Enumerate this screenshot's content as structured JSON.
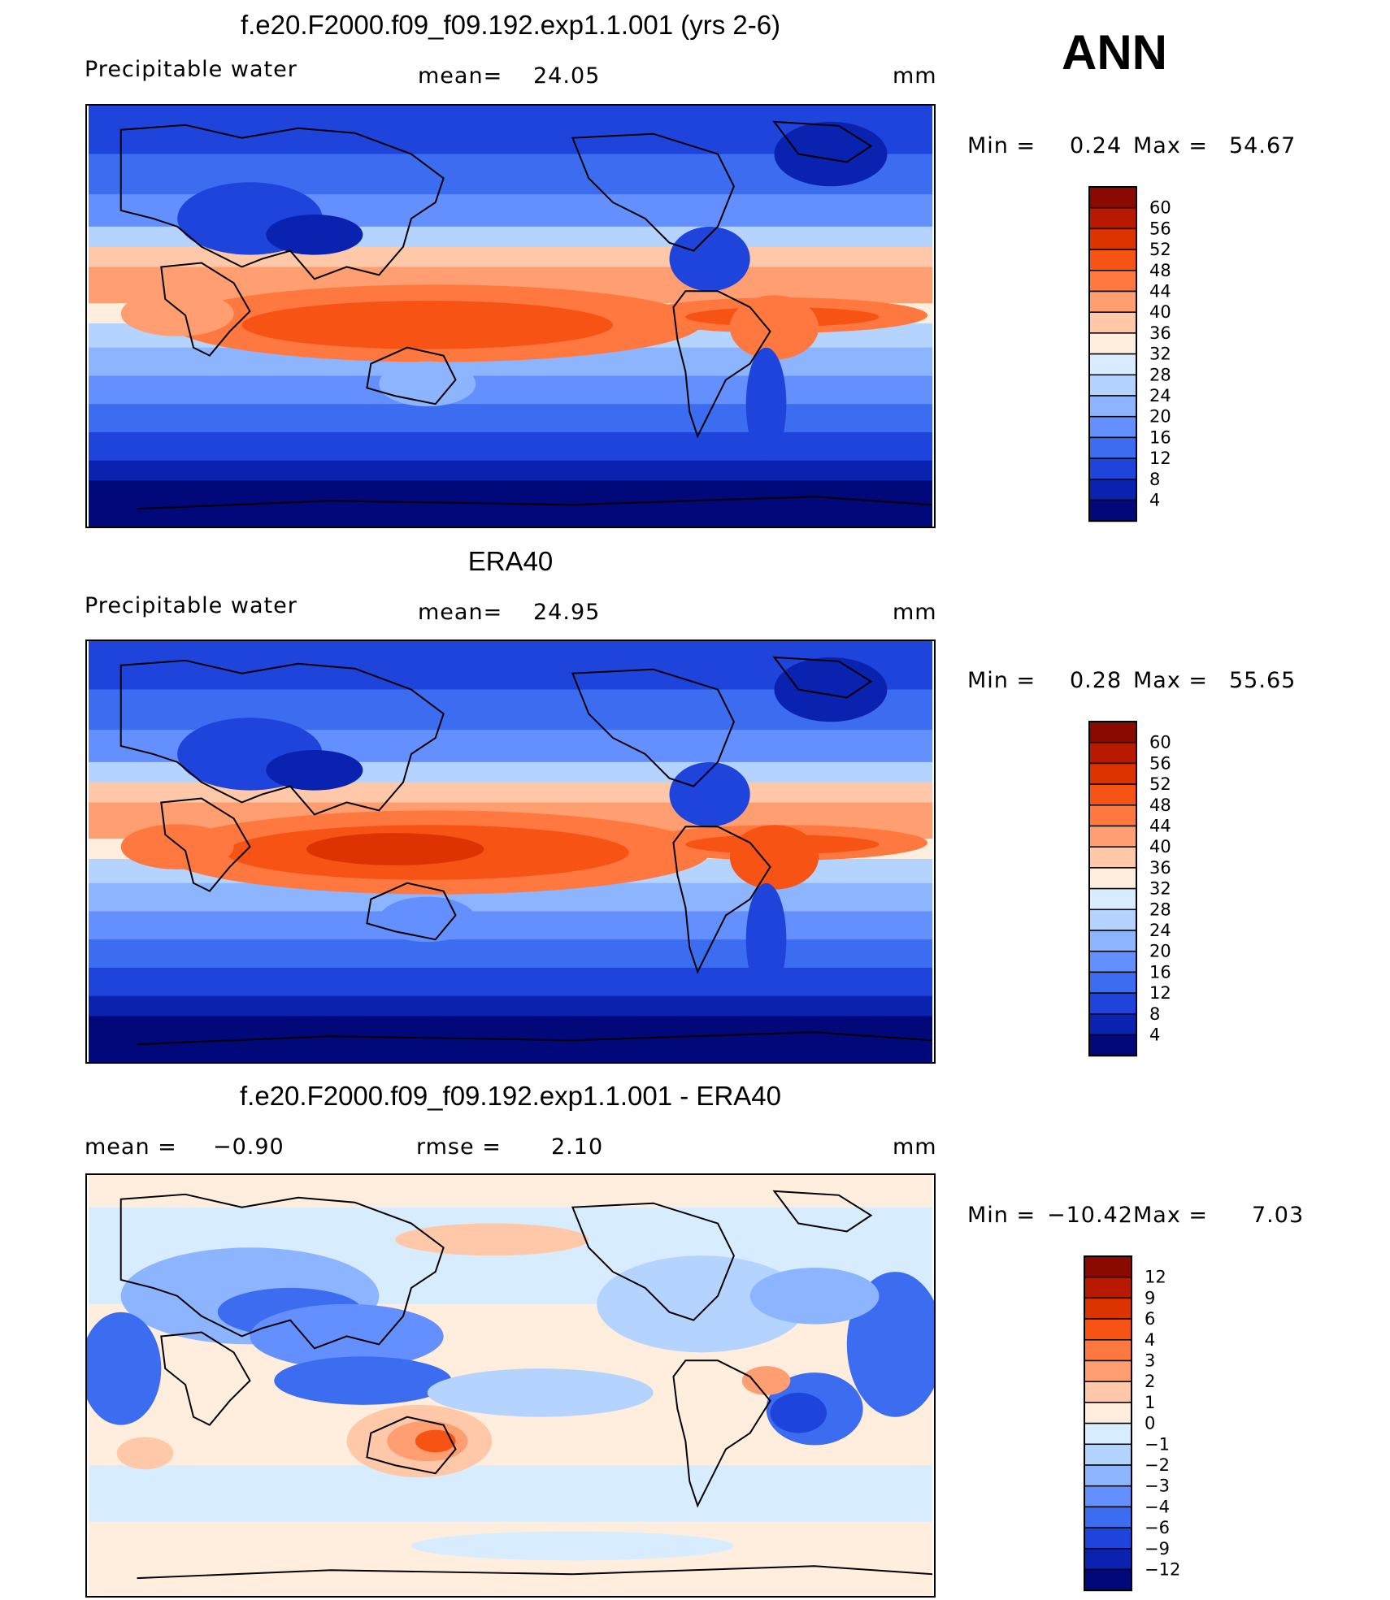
{
  "season_label": "ANN",
  "panels": [
    {
      "title": "f.e20.F2000.f09_f09.192.exp1.1.001 (yrs 2-6)",
      "left_label": "Precipitable  water",
      "mean_label": "mean=",
      "mean_value": "24.05",
      "units": "mm",
      "min_label": "Min  =",
      "min_value": "0.24",
      "max_label": "Max  =",
      "max_value": "54.67",
      "colorbar": {
        "ticks": [
          "60",
          "56",
          "52",
          "48",
          "44",
          "40",
          "36",
          "32",
          "28",
          "24",
          "20",
          "16",
          "12",
          "8",
          "4"
        ],
        "colors": [
          "#8b0a00",
          "#b81a00",
          "#dc3300",
          "#f65314",
          "#ff7840",
          "#ff9e70",
          "#ffc8a8",
          "#ffeedd",
          "#d8ecff",
          "#b4d4ff",
          "#8cb4ff",
          "#6490ff",
          "#3c6cf0",
          "#1e44dc",
          "#0a22b0",
          "#00087a"
        ]
      }
    },
    {
      "title": "ERA40",
      "left_label": "Precipitable  water",
      "mean_label": "mean=",
      "mean_value": "24.95",
      "units": "mm",
      "min_label": "Min  =",
      "min_value": "0.28",
      "max_label": "Max  =",
      "max_value": "55.65",
      "colorbar": {
        "ticks": [
          "60",
          "56",
          "52",
          "48",
          "44",
          "40",
          "36",
          "32",
          "28",
          "24",
          "20",
          "16",
          "12",
          "8",
          "4"
        ],
        "colors": [
          "#8b0a00",
          "#b81a00",
          "#dc3300",
          "#f65314",
          "#ff7840",
          "#ff9e70",
          "#ffc8a8",
          "#ffeedd",
          "#d8ecff",
          "#b4d4ff",
          "#8cb4ff",
          "#6490ff",
          "#3c6cf0",
          "#1e44dc",
          "#0a22b0",
          "#00087a"
        ]
      }
    },
    {
      "title": "f.e20.F2000.f09_f09.192.exp1.1.001 - ERA40",
      "left_label": "mean  =",
      "left_value": "−0.90",
      "mean_label": "rmse  =",
      "mean_value": "2.10",
      "units": "mm",
      "min_label": "Min  =",
      "min_value": "−10.42",
      "max_label": "Max  =",
      "max_value": "7.03",
      "colorbar": {
        "ticks": [
          "12",
          "9",
          "6",
          "4",
          "3",
          "2",
          "1",
          "0",
          "−1",
          "−2",
          "−3",
          "−4",
          "−6",
          "−9",
          "−12"
        ],
        "colors": [
          "#8b0a00",
          "#b81a00",
          "#dc3300",
          "#f65314",
          "#ff7840",
          "#ff9e70",
          "#ffc8a8",
          "#ffeedd",
          "#d8ecff",
          "#b4d4ff",
          "#8cb4ff",
          "#6490ff",
          "#3c6cf0",
          "#1e44dc",
          "#0a22b0",
          "#00087a"
        ]
      }
    }
  ]
}
